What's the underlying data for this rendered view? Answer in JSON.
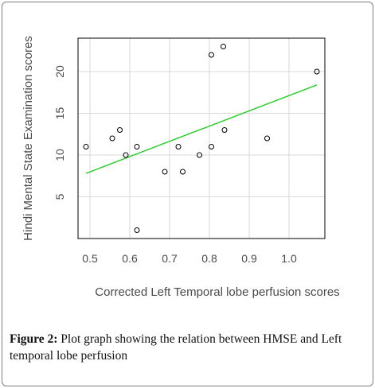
{
  "chart_data": {
    "type": "scatter",
    "title": "",
    "xlabel": "Corrected Left Temporal lobe perfusion scores",
    "ylabel": "Hindi Mental State Examination scores",
    "xlim": [
      0.47,
      1.09
    ],
    "ylim": [
      0,
      24
    ],
    "xticks": [
      0.5,
      0.6,
      0.7,
      0.8,
      0.9,
      1.0
    ],
    "xtick_labels": [
      "0.5",
      "0.6",
      "0.7",
      "0.8",
      "0.9",
      "1.0"
    ],
    "yticks": [
      5,
      10,
      15,
      20
    ],
    "ytick_labels": [
      "5",
      "10",
      "15",
      "20"
    ],
    "grid": true,
    "points": [
      {
        "x": 0.49,
        "y": 11
      },
      {
        "x": 0.556,
        "y": 12
      },
      {
        "x": 0.575,
        "y": 13
      },
      {
        "x": 0.59,
        "y": 10
      },
      {
        "x": 0.618,
        "y": 11
      },
      {
        "x": 0.618,
        "y": 1
      },
      {
        "x": 0.688,
        "y": 8
      },
      {
        "x": 0.722,
        "y": 11
      },
      {
        "x": 0.733,
        "y": 8
      },
      {
        "x": 0.775,
        "y": 10
      },
      {
        "x": 0.805,
        "y": 11
      },
      {
        "x": 0.805,
        "y": 22
      },
      {
        "x": 0.835,
        "y": 23
      },
      {
        "x": 0.838,
        "y": 13
      },
      {
        "x": 0.945,
        "y": 12
      },
      {
        "x": 1.07,
        "y": 20
      }
    ],
    "trendline": {
      "color": "#22cc22",
      "x": [
        0.49,
        1.07
      ],
      "y": [
        7.8,
        18.4
      ]
    },
    "marker_color": "#000000",
    "grid_color": "#d9d9d9"
  },
  "caption": {
    "label": "Figure 2:",
    "text": " Plot graph showing the relation between HMSE and Left temporal lobe perfusion"
  }
}
